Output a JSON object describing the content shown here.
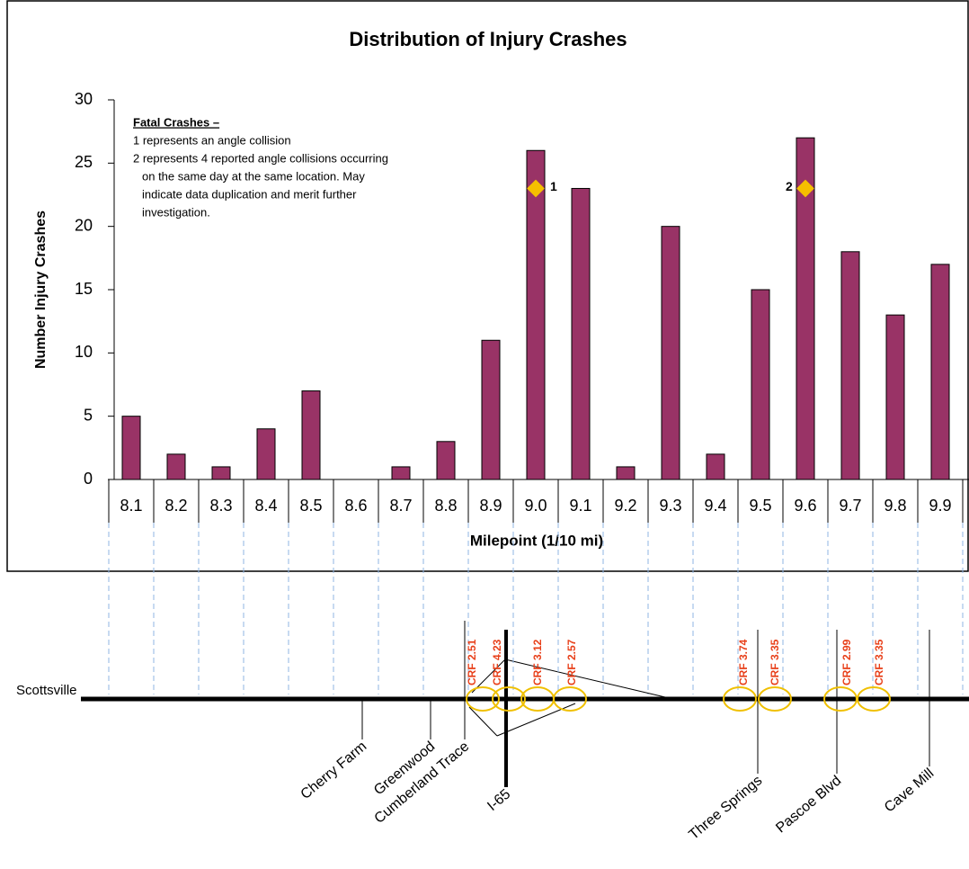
{
  "chart_data": {
    "type": "bar",
    "title": "Distribution of Injury Crashes",
    "x_label": "Milepoint (1/10 mi)",
    "y_label": "Number Injury Crashes",
    "categories": [
      "8.1",
      "8.2",
      "8.3",
      "8.4",
      "8.5",
      "8.6",
      "8.7",
      "8.8",
      "8.9",
      "9.0",
      "9.1",
      "9.2",
      "9.3",
      "9.4",
      "9.5",
      "9.6",
      "9.7",
      "9.8",
      "9.9"
    ],
    "values": [
      5,
      2,
      1,
      4,
      7,
      0,
      1,
      3,
      11,
      26,
      23,
      1,
      20,
      2,
      15,
      27,
      18,
      13,
      17
    ],
    "color": "#993366",
    "ylim": [
      0,
      30
    ],
    "yticks": [
      0,
      5,
      10,
      15,
      20,
      25,
      30
    ],
    "fatal_markers": [
      {
        "category": "9.0",
        "value": 23,
        "label": "1"
      },
      {
        "category": "9.6",
        "value": 23,
        "label": "2"
      }
    ],
    "marker_color": "#f5c000",
    "note_title": "Fatal Crashes –",
    "note_lines": [
      "1 represents an angle collision",
      "2 represents 4 reported angle collisions occurring",
      "on the same day at the same location.  May",
      "indicate data duplication and merit further",
      "investigation."
    ]
  },
  "road": {
    "origin": "Scottsville",
    "cross_streets": [
      "Cherry Farm",
      "Greenwood",
      "Cumberland Trace",
      "I-65",
      "Three Springs",
      "Pascoe Blvd",
      "Cave Mill"
    ],
    "crf_labels": [
      "CRF 2.51",
      "CRF 4.23",
      "CRF 3.12",
      "CRF 2.57",
      "CRF 3.74",
      "CRF 3.35",
      "CRF 2.99",
      "CRF 3.35"
    ]
  }
}
